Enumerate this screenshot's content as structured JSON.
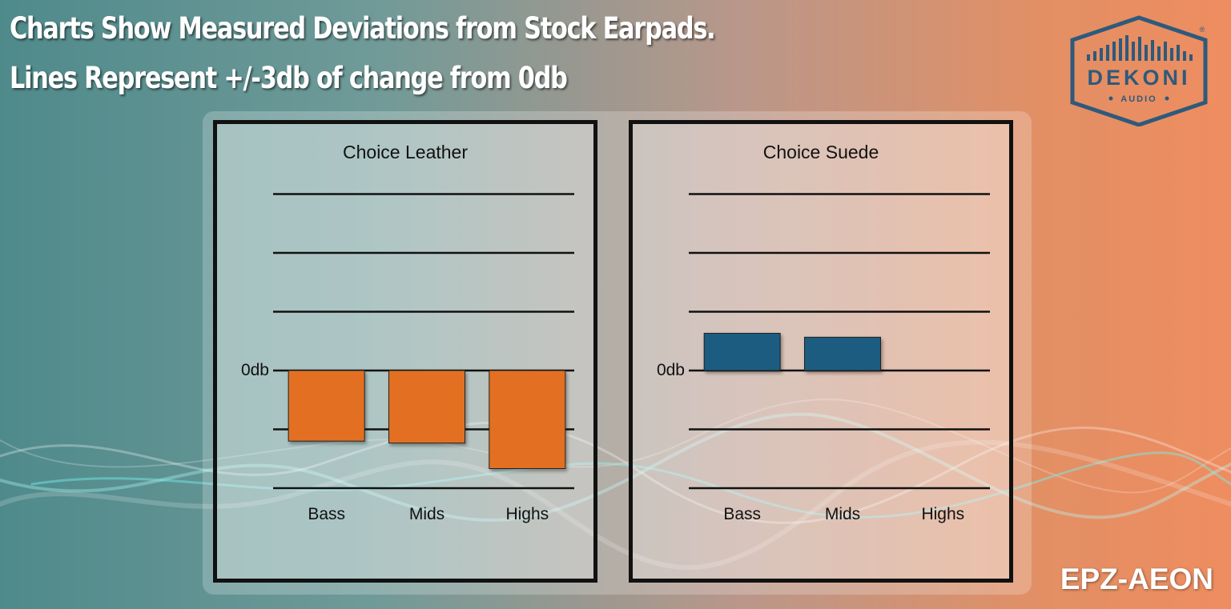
{
  "header": {
    "line1": "Charts Show Measured Deviations from Stock Earpads.",
    "line2": "Lines Represent +/-3db of change from 0db"
  },
  "brand": {
    "name": "DEKONI",
    "sub": "AUDIO",
    "registered": "®"
  },
  "model": "EPZ-AEON",
  "colors": {
    "leather": "#e37020",
    "suede": "#1b5b80",
    "grid": "#111111",
    "logo": "#2e5a7c"
  },
  "chart_data": [
    {
      "type": "bar",
      "title": "Choice Leather",
      "categories": [
        "Bass",
        "Mids",
        "Highs"
      ],
      "values": [
        -3.6,
        -3.7,
        -5.0
      ],
      "zero_label": "0db",
      "grid_step_db": 3,
      "ylim": [
        -6,
        9
      ],
      "xlabel": "",
      "ylabel": "",
      "legend": "none",
      "color": "#e37020"
    },
    {
      "type": "bar",
      "title": "Choice Suede",
      "categories": [
        "Bass",
        "Mids",
        "Highs"
      ],
      "values": [
        1.9,
        1.7,
        0
      ],
      "zero_label": "0db",
      "grid_step_db": 3,
      "ylim": [
        -6,
        9
      ],
      "xlabel": "",
      "ylabel": "",
      "legend": "none",
      "color": "#1b5b80"
    }
  ]
}
